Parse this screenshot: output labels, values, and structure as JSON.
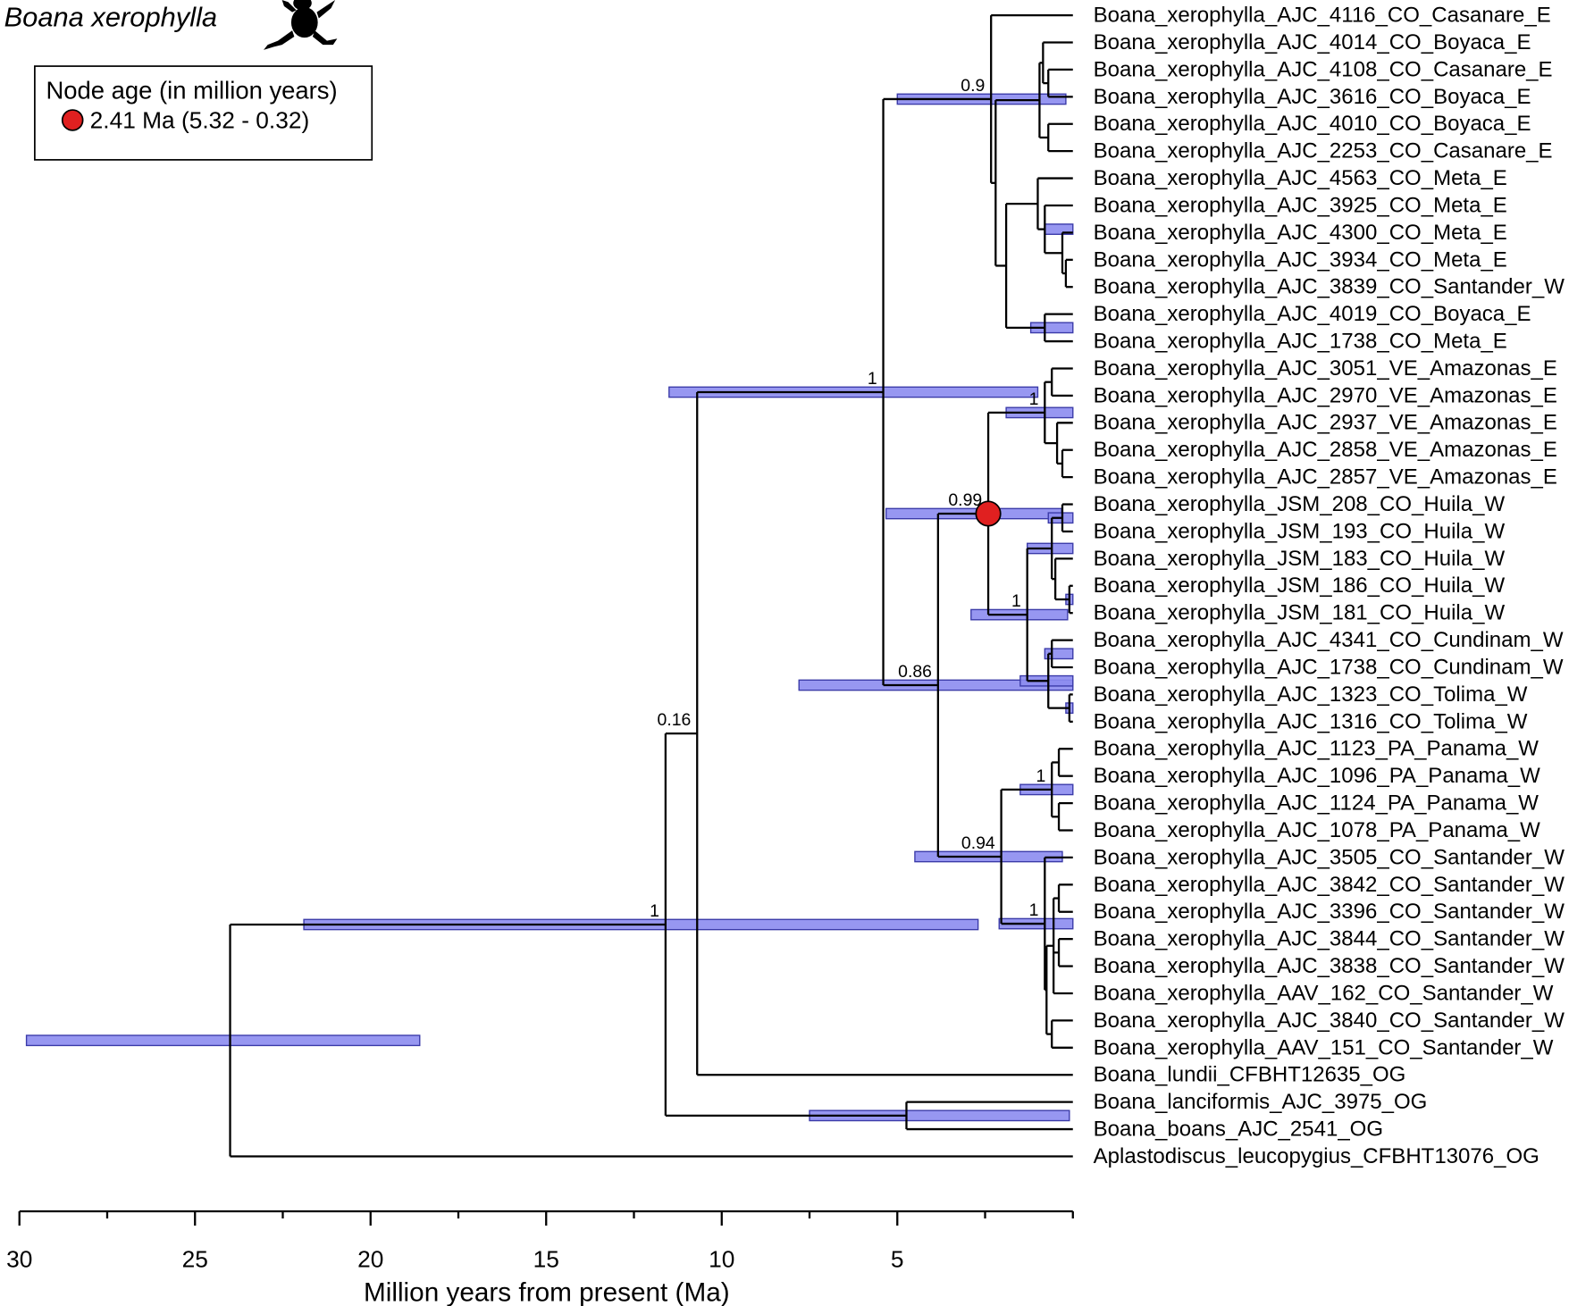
{
  "title": "Boana xerophylla",
  "legend": {
    "heading": "Node age (in million years)",
    "text": "2.41 Ma (5.32 - 0.32)"
  },
  "axis": {
    "label": "Million years from present (Ma)",
    "xlim": [
      30,
      0
    ],
    "xticks": [
      30,
      25,
      20,
      15,
      10,
      5
    ],
    "minor_ticks": [
      27.5,
      22.5,
      17.5,
      12.5,
      7.5,
      2.5,
      0
    ]
  },
  "tips": [
    "Boana_xerophylla_AJC_4116_CO_Casanare_E",
    "Boana_xerophylla_AJC_4014_CO_Boyaca_E",
    "Boana_xerophylla_AJC_4108_CO_Casanare_E",
    "Boana_xerophylla_AJC_3616_CO_Boyaca_E",
    "Boana_xerophylla_AJC_4010_CO_Boyaca_E",
    "Boana_xerophylla_AJC_2253_CO_Casanare_E",
    "Boana_xerophylla_AJC_4563_CO_Meta_E",
    "Boana_xerophylla_AJC_3925_CO_Meta_E",
    "Boana_xerophylla_AJC_4300_CO_Meta_E",
    "Boana_xerophylla_AJC_3934_CO_Meta_E",
    "Boana_xerophylla_AJC_3839_CO_Santander_W",
    "Boana_xerophylla_AJC_4019_CO_Boyaca_E",
    "Boana_xerophylla_AJC_1738_CO_Meta_E",
    "Boana_xerophylla_AJC_3051_VE_Amazonas_E",
    "Boana_xerophylla_AJC_2970_VE_Amazonas_E",
    "Boana_xerophylla_AJC_2937_VE_Amazonas_E",
    "Boana_xerophylla_AJC_2858_VE_Amazonas_E",
    "Boana_xerophylla_AJC_2857_VE_Amazonas_E",
    "Boana_xerophylla_JSM_208_CO_Huila_W",
    "Boana_xerophylla_JSM_193_CO_Huila_W",
    "Boana_xerophylla_JSM_183_CO_Huila_W",
    "Boana_xerophylla_JSM_186_CO_Huila_W",
    "Boana_xerophylla_JSM_181_CO_Huila_W",
    "Boana_xerophylla_AJC_4341_CO_Cundinam_W",
    "Boana_xerophylla_AJC_1738_CO_Cundinam_W",
    "Boana_xerophylla_AJC_1323_CO_Tolima_W",
    "Boana_xerophylla_AJC_1316_CO_Tolima_W",
    "Boana_xerophylla_AJC_1123_PA_Panama_W",
    "Boana_xerophylla_AJC_1096_PA_Panama_W",
    "Boana_xerophylla_AJC_1124_PA_Panama_W",
    "Boana_xerophylla_AJC_1078_PA_Panama_W",
    "Boana_xerophylla_AJC_3505_CO_Santander_W",
    "Boana_xerophylla_AJC_3842_CO_Santander_W",
    "Boana_xerophylla_AJC_3396_CO_Santander_W",
    "Boana_xerophylla_AJC_3844_CO_Santander_W",
    "Boana_xerophylla_AJC_3838_CO_Santander_W",
    "Boana_xerophylla_AAV_162_CO_Santander_W",
    "Boana_xerophylla_AJC_3840_CO_Santander_W",
    "Boana_xerophylla_AAV_151_CO_Santander_W",
    "Boana_lundii_CFBHT12635_OG",
    "Boana_lanciformis_AJC_3975_OG",
    "Boana_boans_AJC_2541_OG",
    "Aplastodiscus_leucopygius_CFBHT13076_OG"
  ],
  "nodes": [
    {
      "age": 24.0,
      "tips": [
        42
      ],
      "nodes": [
        1
      ],
      "hpd": [
        29.8,
        18.6
      ]
    },
    {
      "age": 11.6,
      "tips": [],
      "nodes": [
        2,
        3
      ],
      "hpd": [
        21.9,
        2.7
      ],
      "support": "1"
    },
    {
      "age": 10.7,
      "tips": [
        39
      ],
      "nodes": [
        4
      ],
      "support": "0.16"
    },
    {
      "age": 4.74,
      "tips": [
        40,
        41
      ],
      "nodes": [],
      "hpd": [
        7.5,
        0.1
      ]
    },
    {
      "age": 5.4,
      "tips": [],
      "nodes": [
        5,
        6
      ],
      "hpd": [
        11.5,
        1.0
      ],
      "support": "1"
    },
    {
      "age": 2.33,
      "tips": [
        0
      ],
      "nodes": [
        7
      ],
      "hpd": [
        5.0,
        0.2
      ],
      "support": "0.9"
    },
    {
      "age": 3.84,
      "tips": [],
      "nodes": [
        18,
        31
      ],
      "hpd": [
        7.8,
        0.0
      ],
      "support": "0.86"
    },
    {
      "age": 2.2,
      "tips": [],
      "nodes": [
        8,
        12
      ]
    },
    {
      "age": 0.95,
      "tips": [],
      "nodes": [
        9,
        11
      ]
    },
    {
      "age": 0.85,
      "tips": [
        1
      ],
      "nodes": [
        10
      ]
    },
    {
      "age": 0.7,
      "tips": [
        2,
        3
      ],
      "nodes": []
    },
    {
      "age": 0.7,
      "tips": [
        4,
        5
      ],
      "nodes": []
    },
    {
      "age": 1.9,
      "tips": [],
      "nodes": [
        13,
        17
      ]
    },
    {
      "age": 1.0,
      "tips": [
        6
      ],
      "nodes": [
        14
      ]
    },
    {
      "age": 0.8,
      "tips": [
        7
      ],
      "nodes": [
        15
      ],
      "hpd": [
        0.8,
        0.0
      ]
    },
    {
      "age": 0.3,
      "tips": [
        8
      ],
      "nodes": [
        16
      ]
    },
    {
      "age": 0.2,
      "tips": [
        9,
        10
      ],
      "nodes": []
    },
    {
      "age": 0.8,
      "tips": [
        11,
        12
      ],
      "nodes": [],
      "hpd": [
        1.2,
        0.0
      ]
    },
    {
      "age": 2.41,
      "tips": [],
      "nodes": [
        19,
        23
      ],
      "hpd": [
        5.32,
        0.32
      ],
      "support": "0.99",
      "highlight": true
    },
    {
      "age": 0.8,
      "tips": [],
      "nodes": [
        20,
        21
      ],
      "hpd": [
        1.9,
        0.0
      ],
      "support": "1"
    },
    {
      "age": 0.6,
      "tips": [
        13,
        14
      ],
      "nodes": []
    },
    {
      "age": 0.45,
      "tips": [
        15
      ],
      "nodes": [
        22
      ]
    },
    {
      "age": 0.3,
      "tips": [
        16,
        17
      ],
      "nodes": []
    },
    {
      "age": 1.3,
      "tips": [],
      "nodes": [
        24,
        28
      ],
      "hpd": [
        2.9,
        0.15
      ],
      "support": "1"
    },
    {
      "age": 0.6,
      "tips": [],
      "nodes": [
        25,
        26
      ],
      "hpd": [
        1.3,
        0.0
      ]
    },
    {
      "age": 0.3,
      "tips": [
        18,
        19
      ],
      "nodes": [],
      "hpd": [
        0.7,
        0.0
      ]
    },
    {
      "age": 0.5,
      "tips": [
        20
      ],
      "nodes": [
        27
      ]
    },
    {
      "age": 0.1,
      "tips": [
        21,
        22
      ],
      "nodes": [],
      "hpd": [
        0.2,
        0.0
      ]
    },
    {
      "age": 0.7,
      "tips": [],
      "nodes": [
        29,
        30
      ],
      "hpd": [
        1.5,
        0.0
      ]
    },
    {
      "age": 0.6,
      "tips": [
        23,
        24
      ],
      "nodes": [],
      "hpd": [
        0.8,
        0.0
      ]
    },
    {
      "age": 0.1,
      "tips": [
        25,
        26
      ],
      "nodes": [],
      "hpd": [
        0.2,
        0.0
      ]
    },
    {
      "age": 2.04,
      "tips": [],
      "nodes": [
        32,
        35
      ],
      "hpd": [
        4.5,
        0.3
      ],
      "support": "0.94"
    },
    {
      "age": 0.6,
      "tips": [],
      "nodes": [
        33,
        34
      ],
      "hpd": [
        1.5,
        0.0
      ],
      "support": "1"
    },
    {
      "age": 0.4,
      "tips": [
        27,
        28
      ],
      "nodes": []
    },
    {
      "age": 0.4,
      "tips": [
        29,
        30
      ],
      "nodes": []
    },
    {
      "age": 0.8,
      "tips": [
        31
      ],
      "nodes": [
        36
      ],
      "hpd": [
        2.1,
        0.0
      ],
      "support": "1"
    },
    {
      "age": 0.75,
      "tips": [],
      "nodes": [
        37,
        40
      ]
    },
    {
      "age": 0.55,
      "tips": [
        36
      ],
      "nodes": [
        38,
        39
      ]
    },
    {
      "age": 0.4,
      "tips": [
        32,
        33
      ],
      "nodes": []
    },
    {
      "age": 0.4,
      "tips": [
        34,
        35
      ],
      "nodes": []
    },
    {
      "age": 0.6,
      "tips": [
        37,
        38
      ],
      "nodes": []
    }
  ]
}
